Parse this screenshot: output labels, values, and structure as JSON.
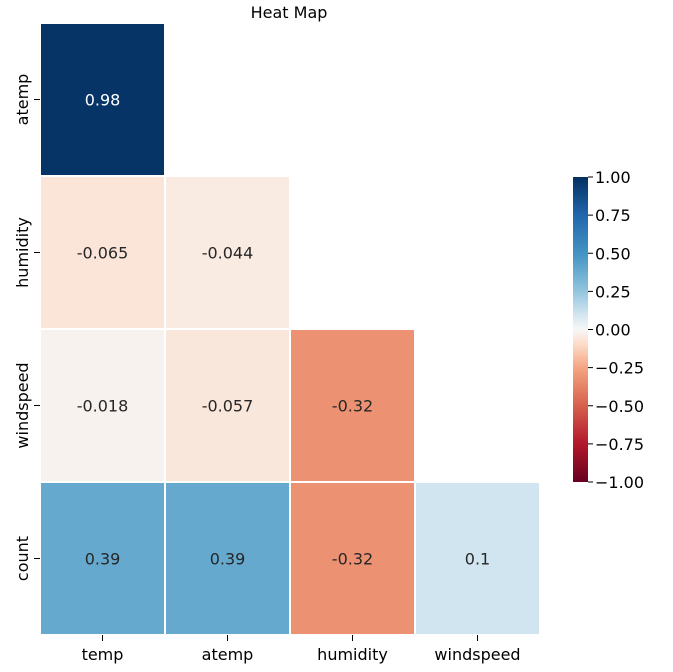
{
  "chart_data": {
    "type": "heatmap",
    "title": "Heat Map",
    "x_labels": [
      "temp",
      "atemp",
      "humidity",
      "windspeed"
    ],
    "y_labels": [
      "atemp",
      "humidity",
      "windspeed",
      "count"
    ],
    "values": [
      [
        0.98,
        null,
        null,
        null
      ],
      [
        -0.065,
        -0.044,
        null,
        null
      ],
      [
        -0.018,
        -0.057,
        -0.32,
        null
      ],
      [
        0.39,
        0.39,
        -0.32,
        0.1
      ]
    ],
    "value_labels": [
      [
        "0.98",
        "",
        "",
        ""
      ],
      [
        "-0.065",
        "-0.044",
        "",
        ""
      ],
      [
        "-0.018",
        "-0.057",
        "-0.32",
        ""
      ],
      [
        "0.39",
        "0.39",
        "-0.32",
        "0.1"
      ]
    ],
    "colormap": "RdBu",
    "vmin": -1.0,
    "vmax": 1.0,
    "colorbar_ticks": [
      1.0,
      0.75,
      0.5,
      0.25,
      0.0,
      -0.25,
      -0.5,
      -0.75,
      -1.0
    ],
    "colorbar_tick_labels": [
      "1.00",
      "0.75",
      "0.50",
      "0.25",
      "0.00",
      "−0.25",
      "−0.50",
      "−0.75",
      "−1.00"
    ],
    "mask": "upper-triangle",
    "xlabel": "",
    "ylabel": ""
  }
}
